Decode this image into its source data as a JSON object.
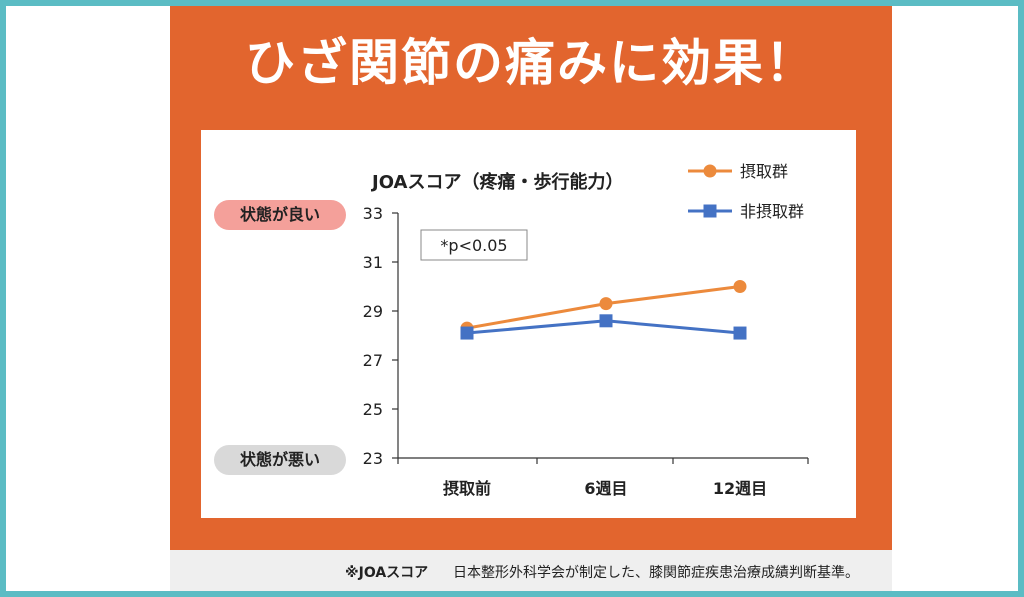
{
  "headline": "ひざ関節の痛みに効果！",
  "labels": {
    "good": "状態が良い",
    "bad": "状態が悪い"
  },
  "footnote": {
    "label": "※JOAスコア",
    "text": "日本整形外科学会が制定した、膝関節症疾患治療成績判断基準。"
  },
  "colors": {
    "panel": "#e2652e",
    "intake": "#ec8a3c",
    "non_intake": "#4472c4"
  },
  "chart_data": {
    "type": "line",
    "title": "JOAスコア（疼痛・歩行能力）",
    "categories": [
      "摂取前",
      "6週目",
      "12週目"
    ],
    "series": [
      {
        "name": "摂取群",
        "values": [
          28.3,
          29.3,
          30.0
        ],
        "marker": "circle"
      },
      {
        "name": "非摂取群",
        "values": [
          28.1,
          28.6,
          28.1
        ],
        "marker": "square"
      }
    ],
    "ylim": [
      23,
      33
    ],
    "yticks": [
      23,
      25,
      27,
      29,
      31,
      33
    ],
    "annotation": "*p<0.05",
    "legend": "top-right",
    "grid": false
  }
}
